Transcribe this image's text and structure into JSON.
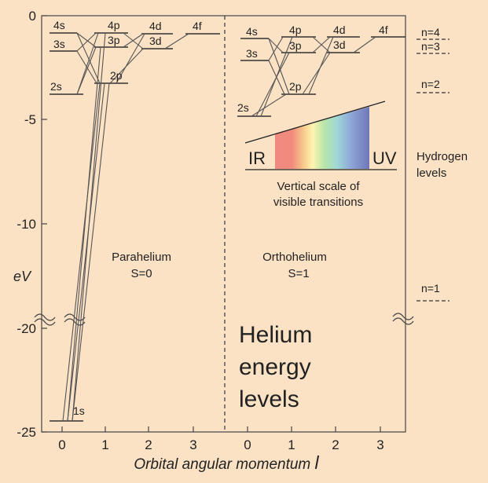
{
  "background_color": "#fbe2c5",
  "y_axis": {
    "label": "eV",
    "ticks": [
      "0",
      "-5",
      "-10",
      "-20",
      "-25"
    ]
  },
  "x_axis": {
    "label": "Orbital angular momentum",
    "label_symbol": "l",
    "ticks_para": [
      "0",
      "1",
      "2",
      "3"
    ],
    "ticks_ortho": [
      "0",
      "1",
      "2",
      "3"
    ]
  },
  "para": {
    "name": "Parahelium",
    "spin": "S=0",
    "levels": [
      "4s",
      "3s",
      "2s",
      "1s",
      "4p",
      "3p",
      "2p",
      "4d",
      "3d",
      "4f"
    ]
  },
  "ortho": {
    "name": "Orthohelium",
    "spin": "S=1",
    "levels": [
      "4s",
      "3s",
      "2s",
      "4p",
      "3p",
      "2p",
      "4d",
      "3d",
      "4f"
    ]
  },
  "hydrogen": {
    "title_line1": "Hydrogen",
    "title_line2": "levels",
    "levels": [
      "n=4",
      "n=3",
      "n=2",
      "n=1"
    ]
  },
  "spectrum": {
    "left_label": "IR",
    "right_label": "UV",
    "caption_line1": "Vertical scale of",
    "caption_line2": "visible transitions"
  },
  "title": {
    "line1": "Helium",
    "line2": "energy",
    "line3": "levels"
  }
}
